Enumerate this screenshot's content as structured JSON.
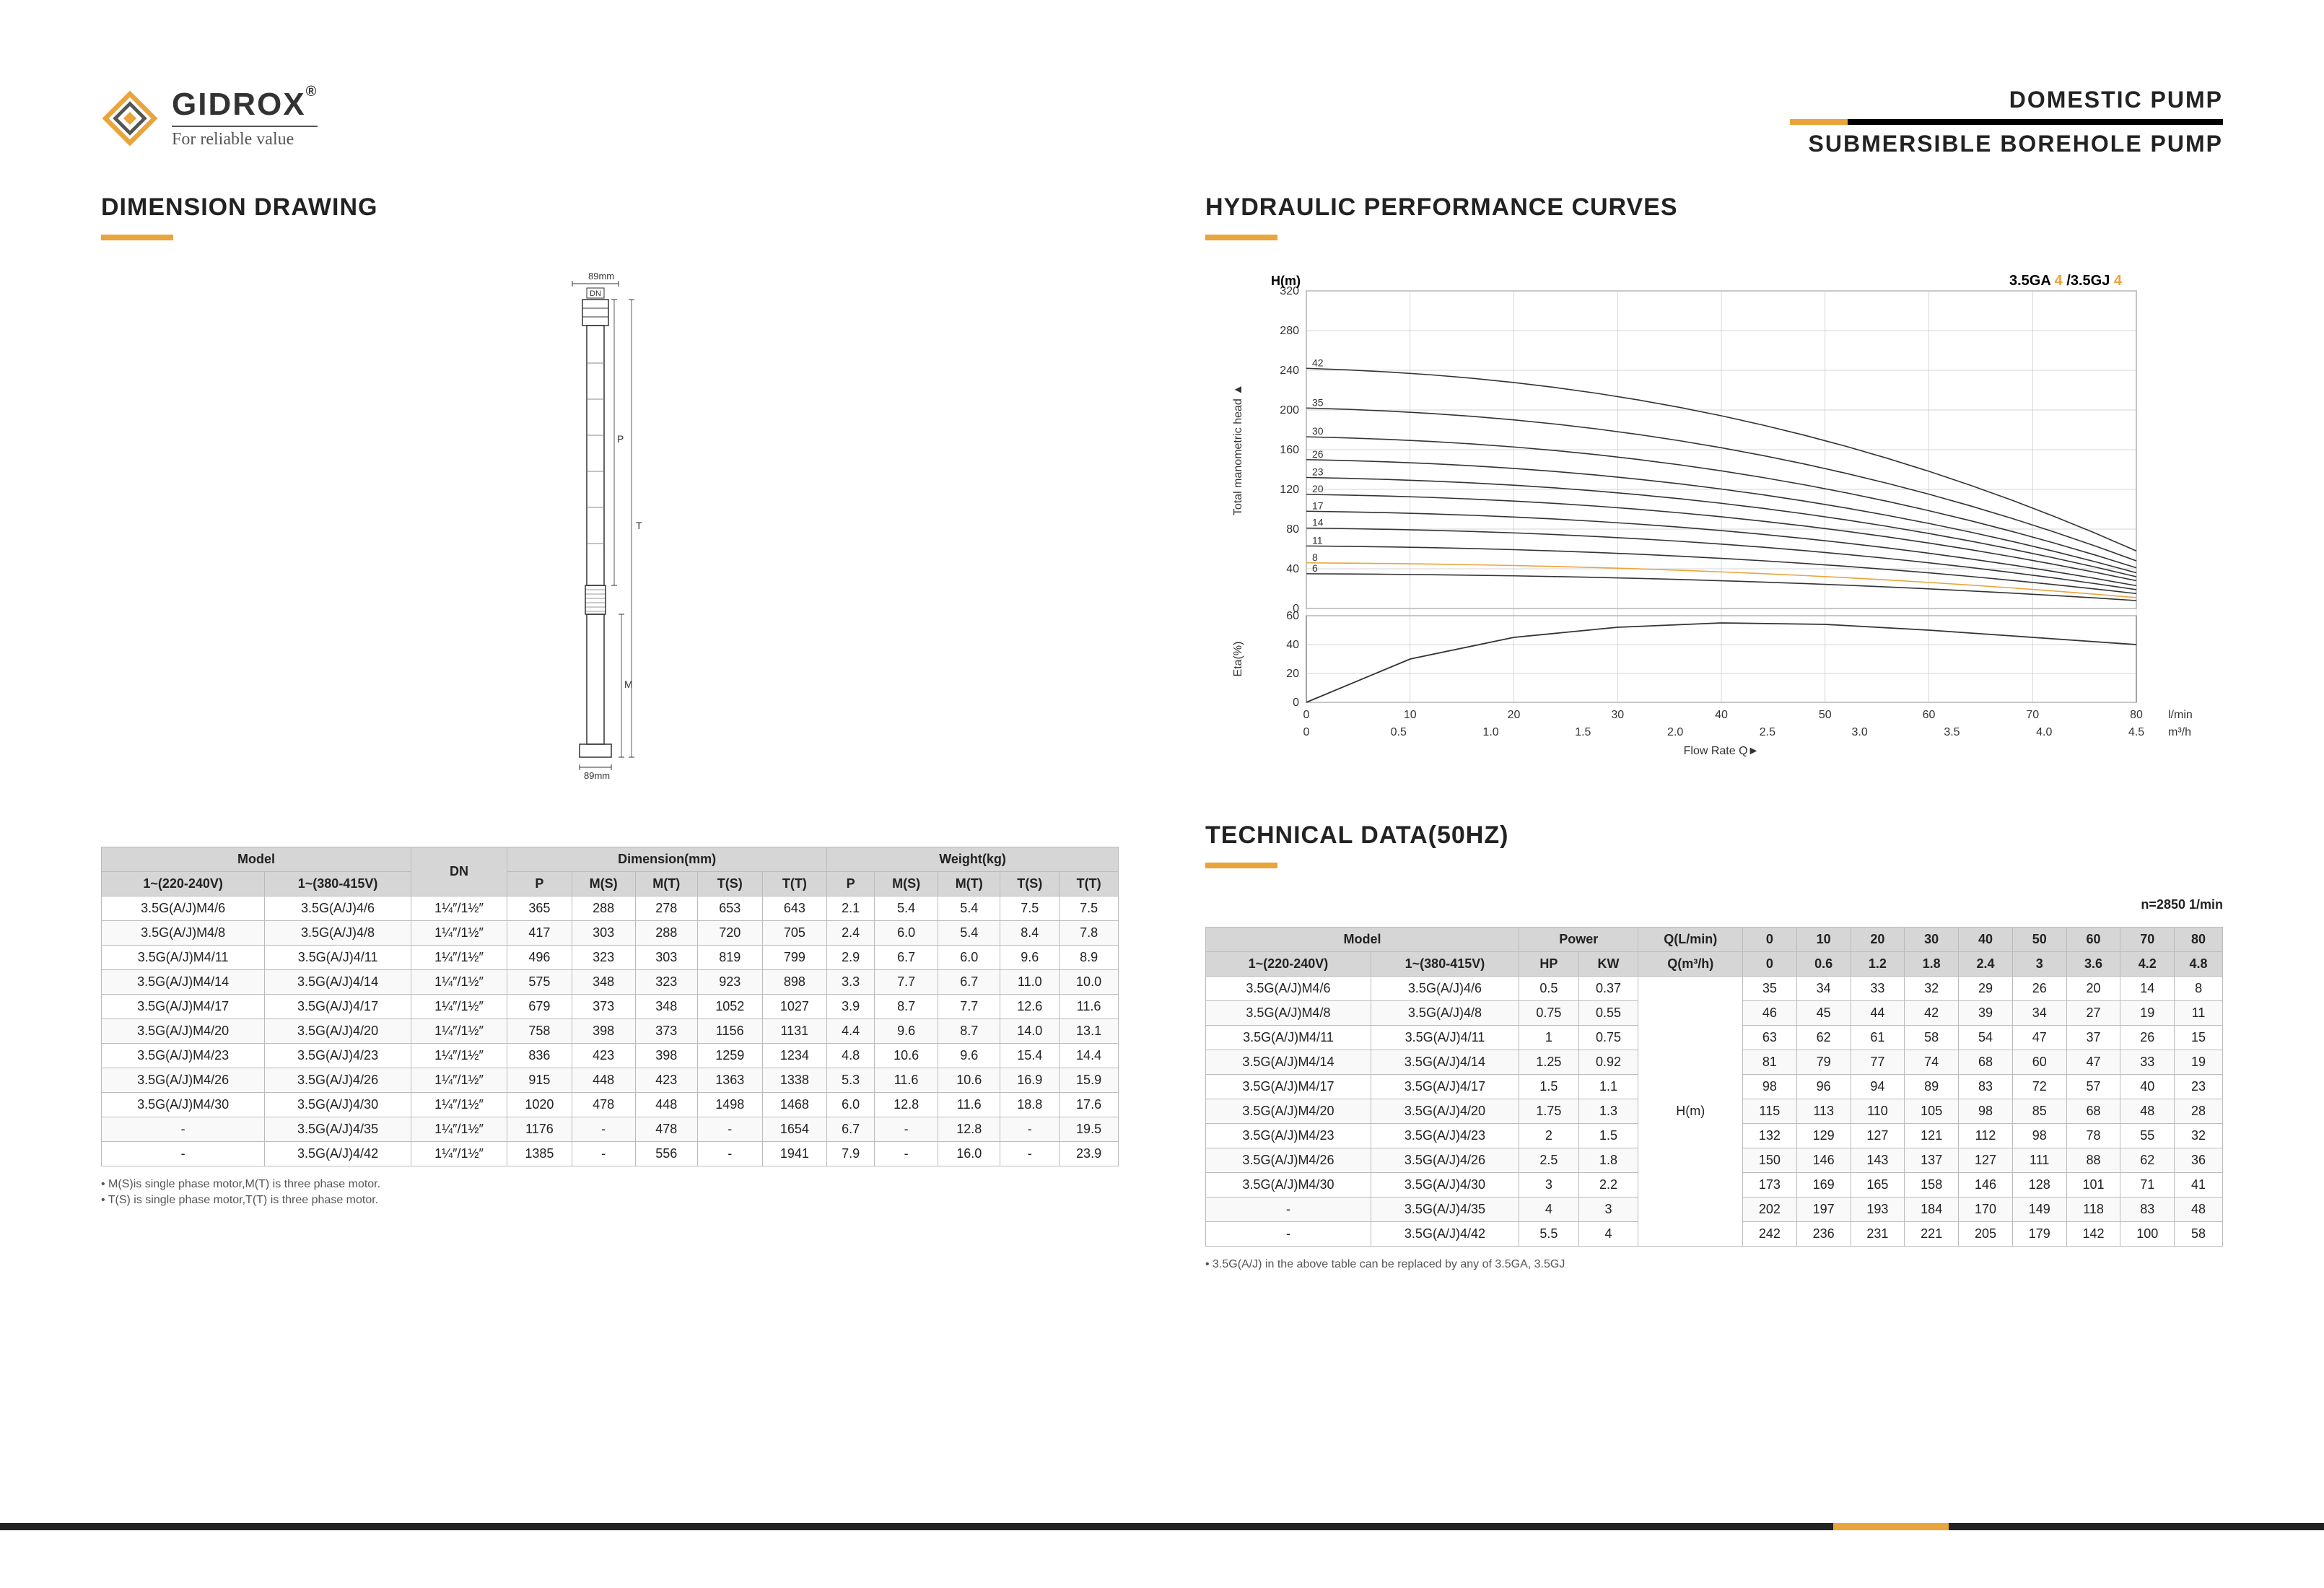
{
  "brand": "GIDROX",
  "brand_tm": "®",
  "tagline": "For reliable value",
  "header_right": {
    "line1": "DOMESTIC  PUMP",
    "line2": "SUBMERSIBLE  BOREHOLE  PUMP"
  },
  "colors": {
    "accent": "#e9a43b",
    "bar": "#222222",
    "table_header": "#d6d6d6",
    "grid": "#c8c8c8",
    "curve_orange": "#e9a43b",
    "curve": "#333333"
  },
  "left": {
    "title": "DIMENSION DRAWING",
    "drawing": {
      "top_label": "89mm",
      "dn_label": "DN",
      "bottom_label": "89mm",
      "dim_M": "M",
      "dim_T": "T",
      "dim_P": "P"
    },
    "table": {
      "group_headers": [
        "Model",
        "DN",
        "Dimension(mm)",
        "Weight(kg)"
      ],
      "sub_headers_model": [
        "1~(220-240V)",
        "1~(380-415V)"
      ],
      "sub_headers_dim": [
        "P",
        "M(S)",
        "M(T)",
        "T(S)",
        "T(T)"
      ],
      "sub_headers_wt": [
        "P",
        "M(S)",
        "M(T)",
        "T(S)",
        "T(T)"
      ],
      "rows": [
        [
          "3.5G(A/J)M4/6",
          "3.5G(A/J)4/6",
          "1¼″/1½″",
          "365",
          "288",
          "278",
          "653",
          "643",
          "2.1",
          "5.4",
          "5.4",
          "7.5",
          "7.5"
        ],
        [
          "3.5G(A/J)M4/8",
          "3.5G(A/J)4/8",
          "1¼″/1½″",
          "417",
          "303",
          "288",
          "720",
          "705",
          "2.4",
          "6.0",
          "5.4",
          "8.4",
          "7.8"
        ],
        [
          "3.5G(A/J)M4/11",
          "3.5G(A/J)4/11",
          "1¼″/1½″",
          "496",
          "323",
          "303",
          "819",
          "799",
          "2.9",
          "6.7",
          "6.0",
          "9.6",
          "8.9"
        ],
        [
          "3.5G(A/J)M4/14",
          "3.5G(A/J)4/14",
          "1¼″/1½″",
          "575",
          "348",
          "323",
          "923",
          "898",
          "3.3",
          "7.7",
          "6.7",
          "11.0",
          "10.0"
        ],
        [
          "3.5G(A/J)M4/17",
          "3.5G(A/J)4/17",
          "1¼″/1½″",
          "679",
          "373",
          "348",
          "1052",
          "1027",
          "3.9",
          "8.7",
          "7.7",
          "12.6",
          "11.6"
        ],
        [
          "3.5G(A/J)M4/20",
          "3.5G(A/J)4/20",
          "1¼″/1½″",
          "758",
          "398",
          "373",
          "1156",
          "1131",
          "4.4",
          "9.6",
          "8.7",
          "14.0",
          "13.1"
        ],
        [
          "3.5G(A/J)M4/23",
          "3.5G(A/J)4/23",
          "1¼″/1½″",
          "836",
          "423",
          "398",
          "1259",
          "1234",
          "4.8",
          "10.6",
          "9.6",
          "15.4",
          "14.4"
        ],
        [
          "3.5G(A/J)M4/26",
          "3.5G(A/J)4/26",
          "1¼″/1½″",
          "915",
          "448",
          "423",
          "1363",
          "1338",
          "5.3",
          "11.6",
          "10.6",
          "16.9",
          "15.9"
        ],
        [
          "3.5G(A/J)M4/30",
          "3.5G(A/J)4/30",
          "1¼″/1½″",
          "1020",
          "478",
          "448",
          "1498",
          "1468",
          "6.0",
          "12.8",
          "11.6",
          "18.8",
          "17.6"
        ],
        [
          "-",
          "3.5G(A/J)4/35",
          "1¼″/1½″",
          "1176",
          "-",
          "478",
          "-",
          "1654",
          "6.7",
          "-",
          "12.8",
          "-",
          "19.5"
        ],
        [
          "-",
          "3.5G(A/J)4/42",
          "1¼″/1½″",
          "1385",
          "-",
          "556",
          "-",
          "1941",
          "7.9",
          "-",
          "16.0",
          "-",
          "23.9"
        ]
      ],
      "footnotes": [
        "• M(S)is single phase motor,M(T) is three phase motor.",
        "• T(S) is single phase motor,T(T) is three phase motor."
      ]
    }
  },
  "right": {
    "curves_title": "HYDRAULIC PERFORMANCE CURVES",
    "chart_label": "3.5GA 4 /3.5GJ 4",
    "chart": {
      "type": "line",
      "y_label_top": "H(m)",
      "y_label_side": "Total manometric head",
      "y_max_top": 320,
      "y_ticks_top": [
        0,
        40,
        80,
        120,
        160,
        200,
        240,
        280,
        320
      ],
      "y_label_bot": "Eta(%)",
      "y_ticks_bot": [
        0,
        20,
        40,
        60
      ],
      "x_label": "Flow Rate  Q►",
      "x_ticks_lmin": [
        0,
        10,
        20,
        30,
        40,
        50,
        60,
        70,
        80
      ],
      "x_unit_top": "l/min",
      "x_ticks_m3h": [
        "0",
        "0.5",
        "1.0",
        "1.5",
        "2.0",
        "2.5",
        "3.0",
        "3.5",
        "4.0",
        "4.5"
      ],
      "x_unit_bot": "m³/h",
      "curve_labels": [
        "42",
        "35",
        "30",
        "26",
        "23",
        "20",
        "17",
        "14",
        "11",
        "8",
        "6"
      ],
      "curves": [
        {
          "h0": 242,
          "h80": 58
        },
        {
          "h0": 202,
          "h80": 48
        },
        {
          "h0": 173,
          "h80": 41
        },
        {
          "h0": 150,
          "h80": 36
        },
        {
          "h0": 132,
          "h80": 32
        },
        {
          "h0": 115,
          "h80": 28
        },
        {
          "h0": 98,
          "h80": 23
        },
        {
          "h0": 81,
          "h80": 19
        },
        {
          "h0": 63,
          "h80": 15
        },
        {
          "h0": 46,
          "h80": 11
        },
        {
          "h0": 35,
          "h80": 8
        }
      ],
      "eta_curve": [
        [
          0,
          0
        ],
        [
          10,
          30
        ],
        [
          20,
          45
        ],
        [
          30,
          52
        ],
        [
          40,
          55
        ],
        [
          50,
          54
        ],
        [
          60,
          50
        ],
        [
          70,
          45
        ],
        [
          80,
          40
        ]
      ],
      "orange_idx": 9
    },
    "tech_title": "TECHNICAL DATA(50HZ)",
    "rpm": "n=2850 1/min",
    "table": {
      "group_headers": [
        "Model",
        "Power",
        "Q(L/min)",
        "0",
        "10",
        "20",
        "30",
        "40",
        "50",
        "60",
        "70",
        "80"
      ],
      "sub_model": [
        "1~(220-240V)",
        "1~(380-415V)"
      ],
      "sub_power": [
        "HP",
        "KW"
      ],
      "sub_q": "Q(m³/h)",
      "sub_q_vals": [
        "0",
        "0.6",
        "1.2",
        "1.8",
        "2.4",
        "3",
        "3.6",
        "4.2",
        "4.8"
      ],
      "hm_label": "H(m)",
      "rows": [
        [
          "3.5G(A/J)M4/6",
          "3.5G(A/J)4/6",
          "0.5",
          "0.37",
          "35",
          "34",
          "33",
          "32",
          "29",
          "26",
          "20",
          "14",
          "8"
        ],
        [
          "3.5G(A/J)M4/8",
          "3.5G(A/J)4/8",
          "0.75",
          "0.55",
          "46",
          "45",
          "44",
          "42",
          "39",
          "34",
          "27",
          "19",
          "11"
        ],
        [
          "3.5G(A/J)M4/11",
          "3.5G(A/J)4/11",
          "1",
          "0.75",
          "63",
          "62",
          "61",
          "58",
          "54",
          "47",
          "37",
          "26",
          "15"
        ],
        [
          "3.5G(A/J)M4/14",
          "3.5G(A/J)4/14",
          "1.25",
          "0.92",
          "81",
          "79",
          "77",
          "74",
          "68",
          "60",
          "47",
          "33",
          "19"
        ],
        [
          "3.5G(A/J)M4/17",
          "3.5G(A/J)4/17",
          "1.5",
          "1.1",
          "98",
          "96",
          "94",
          "89",
          "83",
          "72",
          "57",
          "40",
          "23"
        ],
        [
          "3.5G(A/J)M4/20",
          "3.5G(A/J)4/20",
          "1.75",
          "1.3",
          "115",
          "113",
          "110",
          "105",
          "98",
          "85",
          "68",
          "48",
          "28"
        ],
        [
          "3.5G(A/J)M4/23",
          "3.5G(A/J)4/23",
          "2",
          "1.5",
          "132",
          "129",
          "127",
          "121",
          "112",
          "98",
          "78",
          "55",
          "32"
        ],
        [
          "3.5G(A/J)M4/26",
          "3.5G(A/J)4/26",
          "2.5",
          "1.8",
          "150",
          "146",
          "143",
          "137",
          "127",
          "111",
          "88",
          "62",
          "36"
        ],
        [
          "3.5G(A/J)M4/30",
          "3.5G(A/J)4/30",
          "3",
          "2.2",
          "173",
          "169",
          "165",
          "158",
          "146",
          "128",
          "101",
          "71",
          "41"
        ],
        [
          "-",
          "3.5G(A/J)4/35",
          "4",
          "3",
          "202",
          "197",
          "193",
          "184",
          "170",
          "149",
          "118",
          "83",
          "48"
        ],
        [
          "-",
          "3.5G(A/J)4/42",
          "5.5",
          "4",
          "242",
          "236",
          "231",
          "221",
          "205",
          "179",
          "142",
          "100",
          "58"
        ]
      ],
      "footnote": "•  3.5G(A/J) in the above table can be replaced by any of 3.5GA, 3.5GJ"
    }
  }
}
